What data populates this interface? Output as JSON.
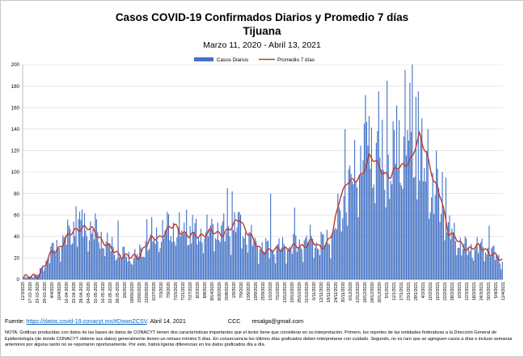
{
  "title": "Casos COVID-19 Confirmados Diarios y Promedio 7 días",
  "subtitle_city": "Tijuana",
  "date_range": "Marzo 11, 2020 - Abril 13, 2021",
  "footer": {
    "source_label": "Fuente:",
    "source_link": "https://datos.covid-19.conacyt.mx/#DownZCSV",
    "source_date": ". Abril 14, 2021",
    "author": "CCC",
    "email": "resalga@gmail.com",
    "note": "NOTA: Gráficas producidas con datos de las bases de datos de CONACYT tienen dos características importantes que el lector tiene que considerar en su interpretación. Primero, los reportes de las entidades federativas a la Dirección General de Epidemiología (de donde CONACYT obtiene sus datos) generalmente tienen un retraso mínimo 5 días. En consecuencia los últimos días graficados deben interpretarse con cuidado. Segundo, no es raro que se agreguen casos a días o incluso semanas anteriores por alguna razón no se reportaron oportunamente. Por esto, habrá ligeras diferencias en los datos graficados día a día."
  },
  "colors": {
    "bars": "#4472c4",
    "line": "#c0392b"
  },
  "chart_data": {
    "type": "bar",
    "title": "Casos COVID-19 Confirmados Diarios y Promedio 7 días",
    "ylim": [
      0,
      200
    ],
    "yticks": [
      0,
      20,
      40,
      60,
      80,
      100,
      120,
      140,
      160,
      180,
      200
    ],
    "grid": true,
    "legend_position": "top-center",
    "start_date": "11/3/2020",
    "end_date": "13/4/2021",
    "xtick_labels": [
      "11/3/2020",
      "17-03-2020",
      "23-03-2020",
      "29-03-2020",
      "4/4/2020",
      "10/4/2020",
      "16-04-2020",
      "22-04-2020",
      "28-04-2020",
      "04-05-2020",
      "10-05-2020",
      "16-05-2020",
      "22-05-2020",
      "28-05-2020",
      "3/6/2020",
      "09/06/2020",
      "15/06/2020",
      "21/06/2020",
      "6/27/2020",
      "7/3/2020",
      "7/9/2020",
      "7/15/2020",
      "7/21/2020",
      "7/27/2020",
      "8/2/2020",
      "8/8/2020",
      "8/14/2020",
      "8/20/2020",
      "26/8/2020",
      "1/9/2020",
      "7/9/2020",
      "13/9/2020",
      "19/9/2020",
      "25/9/2020",
      "1/10/2020",
      "7/10/2020",
      "13/10/2020",
      "19/10/2020",
      "25/10/2020",
      "31/10/2020",
      "6/11/2020",
      "12/11/2020",
      "18/11/2020",
      "24/11/2020",
      "30/11/2020",
      "6/12/2020",
      "12/12/2020",
      "18/12/2020",
      "24/12/2020",
      "30/12/2020",
      "5/1/2021",
      "11/1/2021",
      "17/1/2021",
      "23/1/2021",
      "29/1/2021",
      "4/2/2021",
      "10/2/2021",
      "16/2/2021",
      "22/2/2021",
      "28/2/2021",
      "6/3/2021",
      "12/3/2021",
      "18/3/2021",
      "24/3/2021",
      "30/3/2021",
      "5/4/2021",
      "11/4/2021"
    ],
    "series": [
      {
        "name": "Casos Diarios",
        "type": "bar",
        "anchors": [
          [
            0,
            1
          ],
          [
            6,
            3
          ],
          [
            12,
            4
          ],
          [
            18,
            15
          ],
          [
            24,
            26
          ],
          [
            30,
            32
          ],
          [
            36,
            38
          ],
          [
            42,
            48
          ],
          [
            48,
            47
          ],
          [
            54,
            46
          ],
          [
            60,
            44
          ],
          [
            66,
            36
          ],
          [
            72,
            30
          ],
          [
            78,
            26
          ],
          [
            84,
            22
          ],
          [
            90,
            20
          ],
          [
            96,
            22
          ],
          [
            102,
            30
          ],
          [
            108,
            36
          ],
          [
            114,
            40
          ],
          [
            120,
            46
          ],
          [
            126,
            45
          ],
          [
            132,
            42
          ],
          [
            138,
            40
          ],
          [
            144,
            40
          ],
          [
            150,
            42
          ],
          [
            156,
            44
          ],
          [
            162,
            46
          ],
          [
            168,
            42
          ],
          [
            174,
            47
          ],
          [
            180,
            50
          ],
          [
            186,
            40
          ],
          [
            192,
            34
          ],
          [
            198,
            30
          ],
          [
            204,
            28
          ],
          [
            210,
            28
          ],
          [
            216,
            30
          ],
          [
            222,
            30
          ],
          [
            228,
            32
          ],
          [
            234,
            34
          ],
          [
            240,
            36
          ],
          [
            246,
            32
          ],
          [
            252,
            35
          ],
          [
            258,
            42
          ],
          [
            264,
            60
          ],
          [
            270,
            78
          ],
          [
            276,
            95
          ],
          [
            282,
            112
          ],
          [
            288,
            120
          ],
          [
            294,
            110
          ],
          [
            300,
            100
          ],
          [
            306,
            100
          ],
          [
            312,
            112
          ],
          [
            318,
            132
          ],
          [
            324,
            120
          ],
          [
            330,
            105
          ],
          [
            336,
            90
          ],
          [
            342,
            78
          ],
          [
            348,
            65
          ],
          [
            354,
            45
          ],
          [
            360,
            38
          ],
          [
            366,
            30
          ],
          [
            372,
            28
          ],
          [
            378,
            30
          ],
          [
            384,
            28
          ],
          [
            390,
            25
          ],
          [
            396,
            20
          ],
          [
            402,
            14
          ],
          [
            408,
            15
          ],
          [
            414,
            17
          ],
          [
            420,
            12
          ],
          [
            425,
            8
          ]
        ],
        "spikes": [
          [
            44,
            68
          ],
          [
            49,
            65
          ],
          [
            79,
            55
          ],
          [
            103,
            56
          ],
          [
            107,
            58
          ],
          [
            136,
            65
          ],
          [
            141,
            60
          ],
          [
            170,
            85
          ],
          [
            174,
            82
          ],
          [
            206,
            80
          ],
          [
            226,
            67
          ],
          [
            262,
            80
          ],
          [
            268,
            140
          ],
          [
            276,
            130
          ],
          [
            284,
            145
          ],
          [
            288,
            152
          ],
          [
            296,
            175
          ],
          [
            303,
            185
          ],
          [
            311,
            162
          ],
          [
            318,
            195
          ],
          [
            324,
            200
          ],
          [
            327,
            170
          ],
          [
            329,
            175
          ],
          [
            332,
            150
          ],
          [
            337,
            140
          ],
          [
            344,
            120
          ],
          [
            349,
            100
          ],
          [
            352,
            95
          ],
          [
            388,
            50
          ],
          [
            415,
            20
          ]
        ]
      },
      {
        "name": "Promedio 7 días",
        "type": "line",
        "values": [
          [
            0,
            1
          ],
          [
            6,
            2
          ],
          [
            12,
            4
          ],
          [
            18,
            13
          ],
          [
            24,
            25
          ],
          [
            30,
            30
          ],
          [
            36,
            38
          ],
          [
            42,
            45
          ],
          [
            48,
            49
          ],
          [
            54,
            47
          ],
          [
            60,
            45
          ],
          [
            66,
            36
          ],
          [
            72,
            29
          ],
          [
            78,
            25
          ],
          [
            84,
            22
          ],
          [
            90,
            20
          ],
          [
            96,
            22
          ],
          [
            102,
            32
          ],
          [
            108,
            38
          ],
          [
            114,
            40
          ],
          [
            120,
            46
          ],
          [
            126,
            50
          ],
          [
            132,
            45
          ],
          [
            138,
            40
          ],
          [
            144,
            41
          ],
          [
            150,
            42
          ],
          [
            156,
            44
          ],
          [
            162,
            43
          ],
          [
            168,
            44
          ],
          [
            174,
            48
          ],
          [
            180,
            58
          ],
          [
            186,
            45
          ],
          [
            192,
            35
          ],
          [
            198,
            28
          ],
          [
            204,
            26
          ],
          [
            210,
            27
          ],
          [
            216,
            30
          ],
          [
            222,
            28
          ],
          [
            228,
            31
          ],
          [
            234,
            32
          ],
          [
            240,
            35
          ],
          [
            246,
            30
          ],
          [
            252,
            33
          ],
          [
            258,
            44
          ],
          [
            264,
            78
          ],
          [
            270,
            92
          ],
          [
            276,
            90
          ],
          [
            282,
            98
          ],
          [
            288,
            115
          ],
          [
            294,
            108
          ],
          [
            300,
            100
          ],
          [
            306,
            96
          ],
          [
            312,
            104
          ],
          [
            318,
            108
          ],
          [
            324,
            113
          ],
          [
            330,
            134
          ],
          [
            336,
            118
          ],
          [
            342,
            90
          ],
          [
            348,
            76
          ],
          [
            354,
            45
          ],
          [
            360,
            38
          ],
          [
            366,
            31
          ],
          [
            372,
            29
          ],
          [
            378,
            30
          ],
          [
            384,
            29
          ],
          [
            390,
            24
          ],
          [
            396,
            19
          ],
          [
            402,
            15
          ],
          [
            408,
            18
          ],
          [
            414,
            16
          ],
          [
            420,
            11
          ],
          [
            425,
            9
          ]
        ]
      }
    ]
  }
}
